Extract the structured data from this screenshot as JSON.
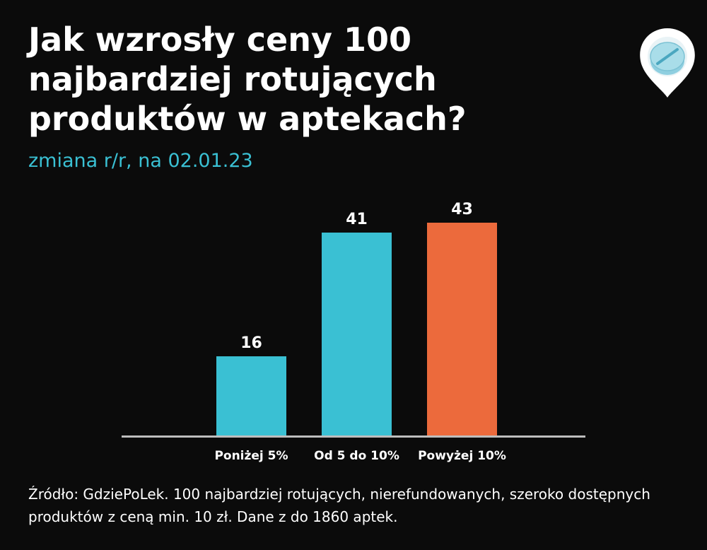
{
  "header": {
    "title": "Jak wzrosły ceny 100 najbardziej rotujących produktów w aptekach?",
    "subtitle": "zmiana r/r, na 02.01.23"
  },
  "logo": {
    "icon": "pill-location-pin-icon"
  },
  "chart_data": {
    "type": "bar",
    "categories": [
      "Poniżej 5%",
      "Od 5 do 10%",
      "Powyżej 10%"
    ],
    "values": [
      16,
      41,
      43
    ],
    "data_labels": [
      "16",
      "41",
      "43"
    ],
    "colors": [
      "#3ac0d3",
      "#3ac0d3",
      "#ec6a3c"
    ],
    "ylim": [
      0,
      43
    ],
    "grid": false,
    "legend": "none"
  },
  "footer": {
    "source": "Źródło: GdziePoLek. 100 najbardziej rotujących, nierefundowanych, szeroko dostępnych produktów z ceną min. 10 zł. Dane z do 1860 aptek."
  }
}
